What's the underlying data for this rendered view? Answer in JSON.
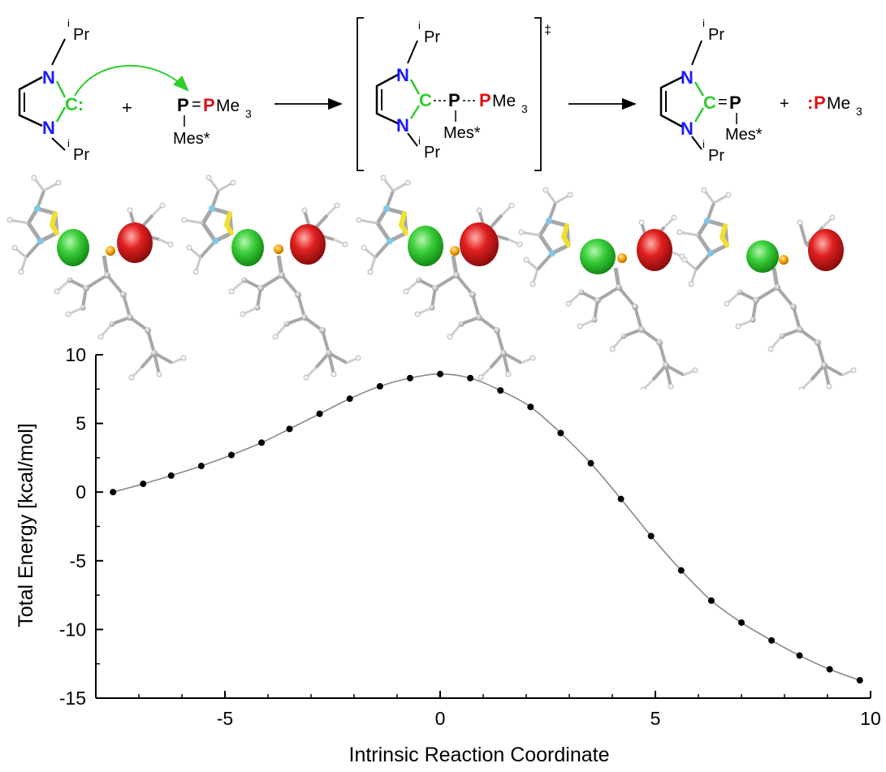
{
  "scheme": {
    "nhc": {
      "n_top": "N",
      "n_bottom": "N",
      "carbene": "C:",
      "ipr_top_sup": "i",
      "ipr_top": "Pr",
      "ipr_bottom_sup": "i",
      "ipr_bottom": "Pr"
    },
    "plus1": "+",
    "phosphinidene": {
      "p": "P",
      "eq": "=",
      "pme3_p": "P",
      "pme3_rest": "Me",
      "pme3_sub": "3",
      "mes": "Mes*"
    },
    "ts": {
      "n_top": "N",
      "n_bottom": "N",
      "c": "C",
      "p": "P",
      "pme3_p": "P",
      "pme3_rest": "Me",
      "pme3_sub": "3",
      "mes": "Mes*",
      "ipr_top_sup": "i",
      "ipr_top": "Pr",
      "ipr_bottom_sup": "i",
      "ipr_bottom": "Pr",
      "dagger": "‡"
    },
    "product": {
      "n_top": "N",
      "n_bottom": "N",
      "c": "C",
      "eq": "=",
      "p": "P",
      "mes": "Mes*",
      "ipr_top_sup": "i",
      "ipr_top": "Pr",
      "ipr_bottom_sup": "i",
      "ipr_bottom": "Pr"
    },
    "plus2": "+",
    "pme3": {
      "colon": ":",
      "p": "P",
      "rest": "Me",
      "sub": "3"
    },
    "colors": {
      "nitrogen": "#1a1aff",
      "carbene": "#2ecc2e",
      "phosphorus_red": "#e01010",
      "black": "#000000"
    }
  },
  "orbital_snapshots": {
    "count": 5,
    "colors": {
      "donor": "#3ccf3c",
      "acceptor": "#e02020",
      "phosphorus": "#f5a000",
      "sulfur_like": "#f0e030",
      "nitrogen": "#7ec8e8",
      "skeleton": "#999999"
    }
  },
  "chart_data": {
    "type": "line",
    "title": "",
    "xlabel": "Intrinsic Reaction Coordinate",
    "ylabel": "Total Energy [kcal/mol]",
    "xlim": [
      -8,
      10
    ],
    "ylim": [
      -15,
      10
    ],
    "xticks": [
      -5,
      0,
      5,
      10
    ],
    "yticks": [
      10,
      5,
      0,
      -5,
      -10,
      -15
    ],
    "xtick_labels": [
      "-5",
      "0",
      "5",
      "10"
    ],
    "ytick_labels": [
      "10",
      "5",
      "0",
      "-5",
      "-10",
      "-15"
    ],
    "grid": false,
    "series": [
      {
        "x": [
          -7.6,
          -6.9,
          -6.25,
          -5.55,
          -4.85,
          -4.15,
          -3.5,
          -2.8,
          -2.1,
          -1.4,
          -0.7,
          0.0,
          0.7,
          1.4,
          2.1,
          2.8,
          3.5,
          4.2,
          4.9,
          5.6,
          6.3,
          7.0,
          7.7,
          8.35,
          9.05,
          9.75
        ],
        "y": [
          0.0,
          0.6,
          1.2,
          1.9,
          2.7,
          3.6,
          4.6,
          5.7,
          6.8,
          7.7,
          8.3,
          8.6,
          8.3,
          7.4,
          6.2,
          4.3,
          2.1,
          -0.5,
          -3.2,
          -5.7,
          -7.9,
          -9.5,
          -10.8,
          -11.9,
          -12.9,
          -13.7
        ],
        "marker": "circle",
        "color": "#000000",
        "line_color": "#888888"
      }
    ]
  }
}
